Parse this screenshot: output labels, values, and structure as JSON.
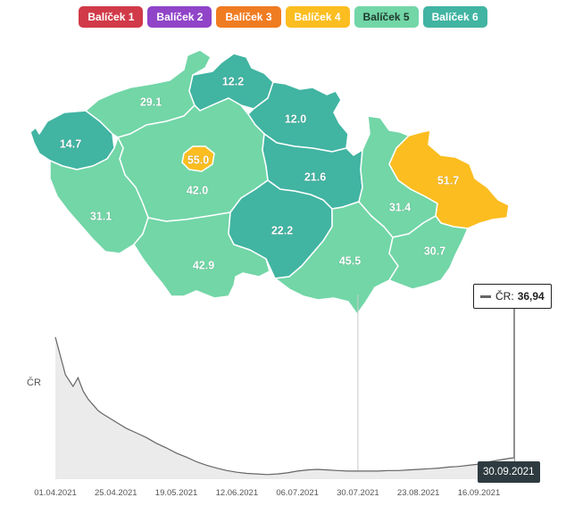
{
  "legend": [
    {
      "label": "Balíček 1",
      "color": "#d13a48"
    },
    {
      "label": "Balíček 2",
      "color": "#9044c8"
    },
    {
      "label": "Balíček 3",
      "color": "#f07c22"
    },
    {
      "label": "Balíček 4",
      "color": "#fbbd20"
    },
    {
      "label": "Balíček 5",
      "color": "#72d6a7"
    },
    {
      "label": "Balíček 6",
      "color": "#41b4a2"
    }
  ],
  "map": {
    "regions": [
      {
        "id": "karlovarsky",
        "value": "14.7",
        "package": "Balíček 6",
        "color": "#41b4a2"
      },
      {
        "id": "ustecky",
        "value": "29.1",
        "package": "Balíček 5",
        "color": "#72d6a7"
      },
      {
        "id": "liberecky",
        "value": "12.2",
        "package": "Balíček 6",
        "color": "#41b4a2"
      },
      {
        "id": "kralovehradecky",
        "value": "12.0",
        "package": "Balíček 6",
        "color": "#41b4a2"
      },
      {
        "id": "pardubicky",
        "value": "21.6",
        "package": "Balíček 6",
        "color": "#41b4a2"
      },
      {
        "id": "stredocesky",
        "value": "42.0",
        "package": "Balíček 5",
        "color": "#72d6a7"
      },
      {
        "id": "praha",
        "value": "55.0",
        "package": "Balíček 4",
        "color": "#fbbd20"
      },
      {
        "id": "plzensky",
        "value": "31.1",
        "package": "Balíček 5",
        "color": "#72d6a7"
      },
      {
        "id": "jihocesky",
        "value": "42.9",
        "package": "Balíček 5",
        "color": "#72d6a7"
      },
      {
        "id": "vysocina",
        "value": "22.2",
        "package": "Balíček 6",
        "color": "#41b4a2"
      },
      {
        "id": "jihomoravsky",
        "value": "45.5",
        "package": "Balíček 5",
        "color": "#72d6a7"
      },
      {
        "id": "olomoucky",
        "value": "31.4",
        "package": "Balíček 5",
        "color": "#72d6a7"
      },
      {
        "id": "moravskoslezsky",
        "value": "51.7",
        "package": "Balíček 4",
        "color": "#fbbd20"
      },
      {
        "id": "zlinsky",
        "value": "30.7",
        "package": "Balíček 5",
        "color": "#72d6a7"
      }
    ]
  },
  "chart_data": {
    "type": "area",
    "title": "",
    "series_label": "ČR",
    "x": [
      "01.04.2021",
      "05.04.2021",
      "08.04.2021",
      "10.04.2021",
      "12.04.2021",
      "14.04.2021",
      "16.04.2021",
      "18.04.2021",
      "20.04.2021",
      "23.04.2021",
      "26.04.2021",
      "29.04.2021",
      "03.05.2021",
      "07.05.2021",
      "11.05.2021",
      "15.05.2021",
      "19.05.2021",
      "23.05.2021",
      "27.05.2021",
      "31.05.2021",
      "04.06.2021",
      "08.06.2021",
      "12.06.2021",
      "16.06.2021",
      "20.06.2021",
      "24.06.2021",
      "28.06.2021",
      "02.07.2021",
      "06.07.2021",
      "10.07.2021",
      "14.07.2021",
      "18.07.2021",
      "22.07.2021",
      "26.07.2021",
      "30.07.2021",
      "03.08.2021",
      "07.08.2021",
      "11.08.2021",
      "15.08.2021",
      "19.08.2021",
      "23.08.2021",
      "27.08.2021",
      "31.08.2021",
      "04.09.2021",
      "08.09.2021",
      "12.09.2021",
      "16.09.2021",
      "20.09.2021",
      "24.09.2021",
      "28.09.2021",
      "30.09.2021"
    ],
    "y": [
      245,
      180,
      160,
      175,
      152,
      138,
      128,
      118,
      112,
      104,
      96,
      88,
      80,
      72,
      62,
      54,
      45,
      38,
      30,
      24,
      19,
      15,
      12,
      10,
      9,
      8,
      9,
      11,
      14,
      16,
      17,
      16,
      15,
      14,
      14,
      14,
      14,
      15,
      15,
      16,
      17,
      18,
      19,
      21,
      22,
      24,
      26,
      30,
      33,
      36,
      36.94
    ],
    "x_ticks": [
      "01.04.2021",
      "25.04.2021",
      "19.05.2021",
      "12.06.2021",
      "06.07.2021",
      "30.07.2021",
      "23.08.2021",
      "16.09.2021"
    ],
    "ylim": [
      0,
      260
    ],
    "hover": {
      "date": "30.09.2021",
      "label": "ČR",
      "value": "36,94"
    },
    "grid": false,
    "legend_position": "none"
  },
  "colors": {
    "area_fill": "#ebebeb",
    "line": "#666666"
  }
}
